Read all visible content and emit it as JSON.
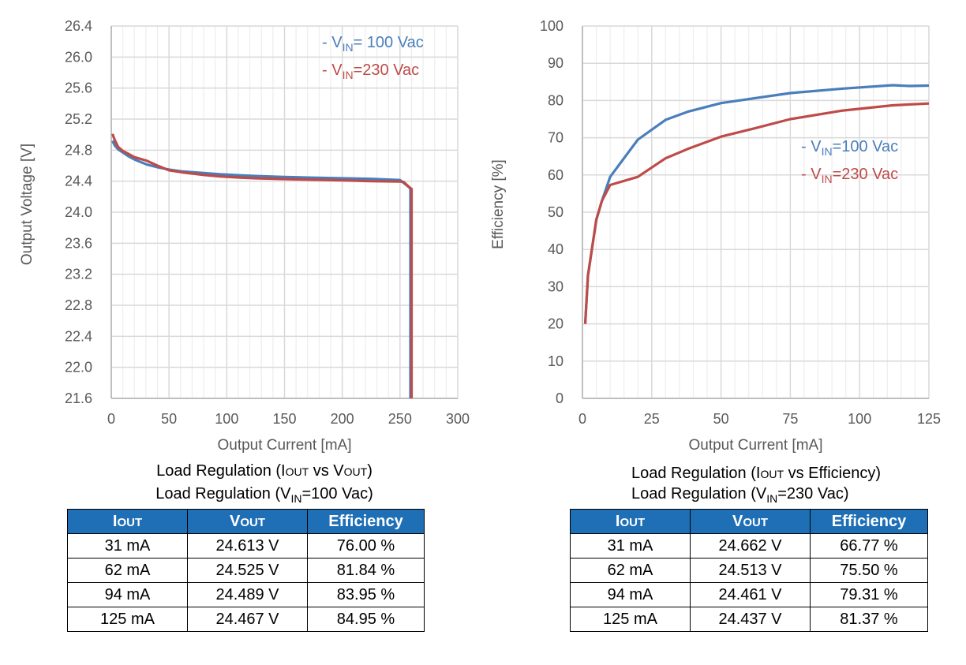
{
  "chart_data": [
    {
      "id": "voltage",
      "type": "line",
      "title": "",
      "xlabel": "Output Current [mA]",
      "ylabel": "Output Voltage [V]",
      "xlim": [
        0,
        300
      ],
      "ylim": [
        21.6,
        26.4
      ],
      "xticks": [
        "0",
        "50",
        "100",
        "150",
        "200",
        "250",
        "300"
      ],
      "yticks": [
        "21.6",
        "22.0",
        "22.4",
        "22.8",
        "23.2",
        "23.6",
        "24.0",
        "24.4",
        "24.8",
        "25.2",
        "25.6",
        "26.0",
        "26.4"
      ],
      "grid": true,
      "legend_position": "top-right",
      "series": [
        {
          "name": "- V_IN= 100 Vac",
          "legend_main": "- V",
          "legend_sub": "IN",
          "legend_rest": "= 100 Vac",
          "color": "#4a7ebb",
          "x": [
            1,
            3,
            6,
            10,
            15,
            20,
            31,
            40,
            50,
            62,
            80,
            94,
            110,
            125,
            150,
            175,
            200,
            225,
            250,
            253,
            258,
            259,
            259
          ],
          "y": [
            24.92,
            24.86,
            24.81,
            24.77,
            24.72,
            24.68,
            24.613,
            24.58,
            24.55,
            24.525,
            24.505,
            24.489,
            24.477,
            24.467,
            24.455,
            24.445,
            24.437,
            24.43,
            24.415,
            24.38,
            24.32,
            24.3,
            21.6
          ]
        },
        {
          "name": "- V_IN=230 Vac",
          "legend_main": "- V",
          "legend_sub": "IN",
          "legend_rest": "=230 Vac",
          "color": "#be4b48",
          "x": [
            1,
            3,
            6,
            10,
            15,
            20,
            31,
            40,
            50,
            62,
            80,
            94,
            110,
            125,
            150,
            175,
            200,
            225,
            250,
            253,
            259,
            260,
            260
          ],
          "y": [
            25.01,
            24.93,
            24.84,
            24.79,
            24.75,
            24.71,
            24.662,
            24.6,
            24.54,
            24.513,
            24.48,
            24.461,
            24.447,
            24.437,
            24.427,
            24.418,
            24.41,
            24.4,
            24.395,
            24.39,
            24.31,
            24.3,
            21.6
          ]
        }
      ]
    },
    {
      "id": "efficiency",
      "type": "line",
      "title": "",
      "xlabel": "Output Current [mA]",
      "ylabel": "Efficiency [%]",
      "xlim": [
        0,
        125
      ],
      "ylim": [
        0,
        100
      ],
      "xticks": [
        "0",
        "25",
        "50",
        "75",
        "100",
        "125"
      ],
      "yticks": [
        "0",
        "10",
        "20",
        "30",
        "40",
        "50",
        "60",
        "70",
        "80",
        "90",
        "100"
      ],
      "grid": true,
      "legend_position": "right",
      "series": [
        {
          "name": "- V_IN=100 Vac",
          "legend_main": "- V",
          "legend_sub": "IN",
          "legend_rest": "=100 Vac",
          "color": "#4a7ebb",
          "x": [
            1,
            2,
            5,
            7,
            10,
            20,
            30,
            38,
            50,
            62,
            75,
            94,
            112,
            118,
            125
          ],
          "y": [
            20,
            33,
            48,
            53,
            59.5,
            69.5,
            74.8,
            77,
            79.3,
            80.6,
            82,
            83.2,
            84.1,
            83.9,
            84
          ]
        },
        {
          "name": "- V_IN=230 Vac",
          "legend_main": "- V",
          "legend_sub": "IN",
          "legend_rest": "=230 Vac",
          "color": "#be4b48",
          "x": [
            1,
            2,
            5,
            7,
            10,
            20,
            30,
            38,
            50,
            62,
            75,
            94,
            112,
            125
          ],
          "y": [
            20,
            33,
            48,
            53,
            57.3,
            59.5,
            64.5,
            67,
            70.3,
            72.5,
            75,
            77.3,
            78.7,
            79.2
          ]
        }
      ]
    }
  ],
  "captions": {
    "left_line1": {
      "pre": "Load Regulation (",
      "i": "I",
      "i_sc": "OUT",
      "mid": " vs ",
      "v": "V",
      "v_sc": "OUT",
      "post": ")"
    },
    "left_line2": {
      "pre": "Load Regulation (V",
      "sub": "IN",
      "post": "=100 Vac)"
    },
    "right_line1": {
      "pre": "Load Regulation (",
      "i": "I",
      "i_sc": "OUT",
      "post": " vs Efficiency)"
    },
    "right_line2": {
      "pre": "Load Regulation (V",
      "sub": "IN",
      "post": "=230 Vac)"
    }
  },
  "tables": {
    "header": {
      "iout_main": "I",
      "iout_sc": "OUT",
      "vout_main": "V",
      "vout_sc": "OUT",
      "efficiency": "Efficiency"
    },
    "header_color": "#1f6fb6",
    "vin100": [
      [
        "31 mA",
        "24.613  V",
        "76.00  %"
      ],
      [
        "62 mA",
        "24.525  V",
        "81.84  %"
      ],
      [
        "94 mA",
        "24.489  V",
        "83.95  %"
      ],
      [
        "125 mA",
        "24.467  V",
        "84.95  %"
      ]
    ],
    "vin230": [
      [
        "31 mA",
        "24.662  V",
        "66.77  %"
      ],
      [
        "62 mA",
        "24.513  V",
        "75.50  %"
      ],
      [
        "94 mA",
        "24.461  V",
        "79.31  %"
      ],
      [
        "125 mA",
        "24.437  V",
        "81.37  %"
      ]
    ]
  }
}
